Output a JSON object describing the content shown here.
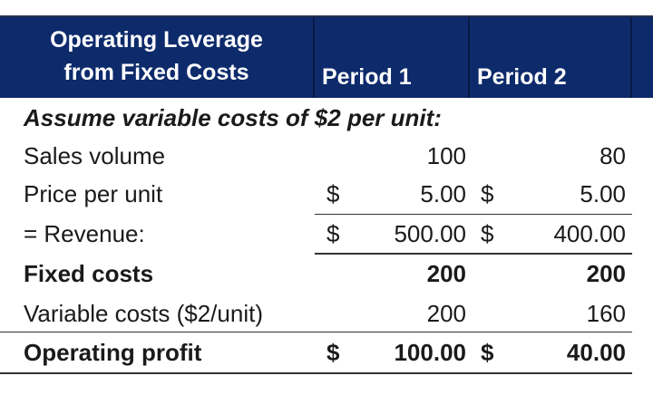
{
  "header": {
    "title": "Operating Leverage from Fixed Costs",
    "title_line1": "Operating Leverage",
    "title_line2": "from Fixed Costs",
    "period1": "Period 1",
    "period2": "Period 2"
  },
  "note": "Assume variable costs of $2 per unit:",
  "rows": [
    {
      "label": "Sales volume",
      "cur1": "",
      "p1": "100",
      "cur2": "",
      "p2": "80"
    },
    {
      "label": "Price per unit",
      "cur1": "$",
      "p1": "5.00",
      "cur2": "$",
      "p2": "5.00"
    },
    {
      "label": "= Revenue:",
      "cur1": "$",
      "p1": "500.00",
      "cur2": "$",
      "p2": "400.00"
    },
    {
      "label": "Fixed costs",
      "cur1": "",
      "p1": "200",
      "cur2": "",
      "p2": "200"
    },
    {
      "label": "Variable costs ($2/unit)",
      "cur1": "",
      "p1": "200",
      "cur2": "",
      "p2": "160"
    },
    {
      "label": "Operating profit",
      "cur1": "$",
      "p1": "100.00",
      "cur2": "$",
      "p2": "40.00"
    }
  ],
  "colors": {
    "header_bg": "#0d2a6b",
    "header_text": "#ffffff"
  }
}
